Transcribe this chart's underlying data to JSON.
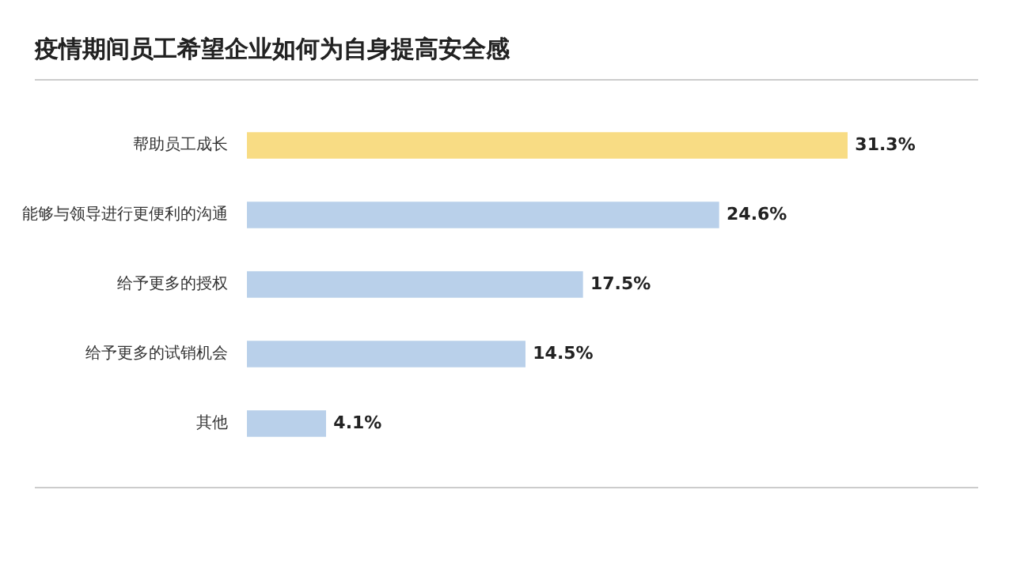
{
  "chart_data": {
    "type": "bar",
    "orientation": "horizontal",
    "title": "疫情期间员工希望企业如何为自身提高安全感",
    "categories": [
      "帮助员工成长",
      "能够与领导进行更便利的沟通",
      "给予更多的授权",
      "给予更多的试销机会",
      "其他"
    ],
    "values": [
      31.3,
      24.6,
      17.5,
      14.5,
      4.1
    ],
    "colors": [
      "#f8dc84",
      "#b9d0ea",
      "#b9d0ea",
      "#b9d0ea",
      "#b9d0ea"
    ],
    "value_labels": [
      "31.3%",
      "24.6%",
      "17.5%",
      "14.5%",
      "4.1%"
    ],
    "grid": false,
    "legend": false
  }
}
